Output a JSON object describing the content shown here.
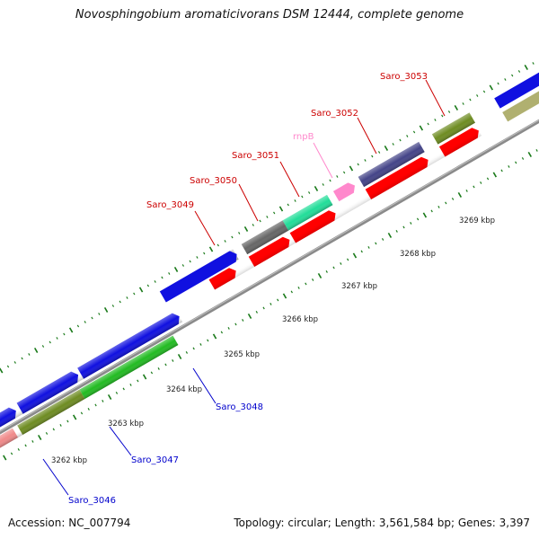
{
  "title": "Novosphingobium aromaticivorans DSM 12444, complete genome",
  "accession": "Accession: NC_007794",
  "summary": "Topology: circular; Length: 3,561,584 bp; Genes: 3,397",
  "ticks": [
    "3262 kbp",
    "3263 kbp",
    "3264 kbp",
    "3265 kbp",
    "3266 kbp",
    "3267 kbp",
    "3268 kbp",
    "3269 kbp"
  ],
  "genes_above": [
    "Saro_3049",
    "Saro_3050",
    "Saro_3051",
    "rnpB",
    "Saro_3052",
    "Saro_3053"
  ],
  "genes_below": [
    "Saro_3046",
    "Saro_3047",
    "Saro_3048"
  ],
  "colors": {
    "backbone": "#8a8a8a",
    "ticks": "#1a7a1a",
    "forward_blue": "#1010e0",
    "cds_red": "#ff0000",
    "olive": "#6e8c22",
    "green": "#22bb22",
    "pink_salmon": "#f08a8a",
    "dark_gray": "#666666",
    "light_gray": "#c8c8c8",
    "teal": "#22dd99",
    "rna_pink": "#ff88cc",
    "slate_blue": "#444488",
    "khaki": "#b0b070",
    "label_red": "#cc0000",
    "label_pink": "#ff88cc",
    "label_blue": "#0000cc"
  }
}
